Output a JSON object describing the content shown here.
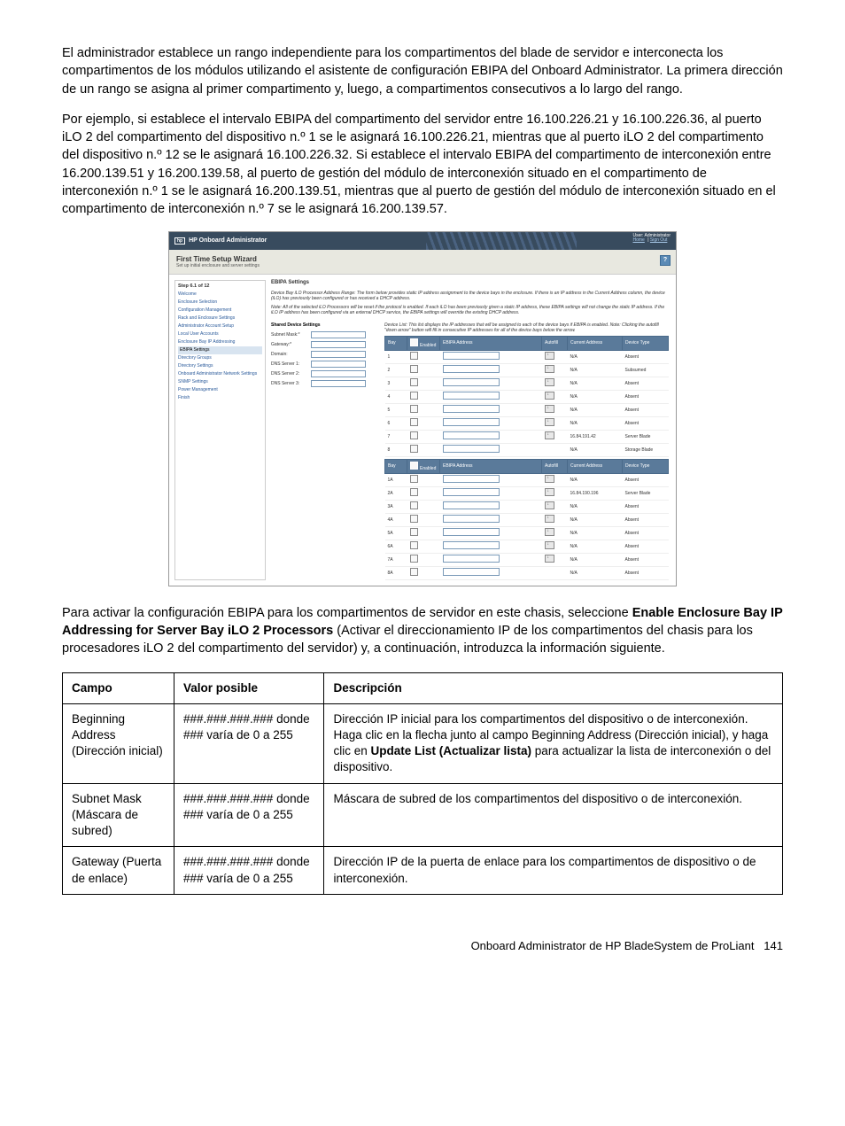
{
  "para1": "El administrador establece un rango independiente para los compartimentos del blade de servidor e interconecta los compartimentos de los módulos utilizando el asistente de configuración EBIPA del Onboard Administrator. La primera dirección de un rango se asigna al primer compartimento y, luego, a compartimentos consecutivos a lo largo del rango.",
  "para2": "Por ejemplo, si establece el intervalo EBIPA del compartimento del servidor entre 16.100.226.21 y 16.100.226.36, al puerto iLO 2 del compartimento del dispositivo n.º 1 se le asignará 16.100.226.21, mientras que al puerto iLO 2 del compartimento del dispositivo n.º 12 se le asignará 16.100.226.32. Si establece el intervalo EBIPA del compartimento de interconexión entre 16.200.139.51 y 16.200.139.58, al puerto de gestión del módulo de interconexión situado en el compartimento de interconexión n.º 1 se le asignará 16.200.139.51, mientras que al puerto de gestión del módulo de interconexión situado en el compartimento de interconexión n.º 7 se le asignará 16.200.139.57.",
  "para3_a": "Para activar la configuración EBIPA para los compartimentos de servidor en este chasis, seleccione ",
  "para3_b": "Enable Enclosure Bay IP Addressing for Server Bay iLO 2 Processors",
  "para3_c": " (Activar el direccionamiento IP de los compartimentos del chasis para los procesadores iLO 2 del compartimento del servidor) y, a continuación, introduzca la información siguiente.",
  "screenshot": {
    "app_title": "HP Onboard Administrator",
    "user_label": "User: Administrator",
    "home_link": "Home",
    "signout_link": "Sign Out",
    "wizard_title": "First Time Setup Wizard",
    "wizard_sub": "Set up initial enclosure and server settings",
    "help": "?",
    "step_head": "Step 6.1 of 12",
    "nav": [
      "Welcome",
      "Enclosure Selection",
      "Configuration Management",
      "Rack and Enclosure Settings",
      "Administrator Account Setup",
      "Local User Accounts",
      "Enclosure Bay IP Addressing",
      "EBIPA Settings",
      "Directory Groups",
      "Directory Settings",
      "Onboard Administrator Network Settings",
      "SNMP Settings",
      "Power Management",
      "Finish"
    ],
    "nav_active_idx": 7,
    "section_title": "EBIPA Settings",
    "desc1": "Device Bay iLO Processor Address Range: The form below provides static IP address assignment to the device bays in the enclosure. If there is an IP address in the Current Address column, the device (iLO) has previously been configured or has received a DHCP address.",
    "desc2": "Note: All of the selected iLO Processors will be reset if the protocol is enabled. If each iLO has been previously given a static IP address, these EBIPA settings will not change the static IP address. If the iLO IP address has been configured via an external DHCP service, the EBIPA settings will override the existing DHCP address.",
    "form_title": "Shared Device Settings",
    "form_labels": [
      "Subnet Mask:*",
      "Gateway:*",
      "Domain:",
      "DNS Server 1:",
      "DNS Server 2:",
      "DNS Server 3:"
    ],
    "table_note": "Device List: This list displays the IP addresses that will be assigned to each of the device bays if EBIPA is enabled. Note: Clicking the autofill \"down arrow\" button will fill in consecutive IP addresses for all of the device bays below the arrow.",
    "table_headers": [
      "Bay",
      "Enabled",
      "EBIPA Address",
      "Autofill",
      "Current Address",
      "Device Type"
    ],
    "rows1": [
      {
        "bay": "1",
        "cur": "N/A",
        "type": "Absent",
        "af": true
      },
      {
        "bay": "2",
        "cur": "N/A",
        "type": "Subsumed",
        "af": true
      },
      {
        "bay": "3",
        "cur": "N/A",
        "type": "Absent",
        "af": true
      },
      {
        "bay": "4",
        "cur": "N/A",
        "type": "Absent",
        "af": true
      },
      {
        "bay": "5",
        "cur": "N/A",
        "type": "Absent",
        "af": true
      },
      {
        "bay": "6",
        "cur": "N/A",
        "type": "Absent",
        "af": true
      },
      {
        "bay": "7",
        "cur": "16.84.191.42",
        "type": "Server Blade",
        "af": true
      },
      {
        "bay": "8",
        "cur": "N/A",
        "type": "Storage Blade",
        "af": false
      }
    ],
    "rows2": [
      {
        "bay": "1A",
        "cur": "N/A",
        "type": "Absent",
        "af": true
      },
      {
        "bay": "2A",
        "cur": "16.84.190.196",
        "type": "Server Blade",
        "af": true
      },
      {
        "bay": "3A",
        "cur": "N/A",
        "type": "Absent",
        "af": true
      },
      {
        "bay": "4A",
        "cur": "N/A",
        "type": "Absent",
        "af": true
      },
      {
        "bay": "5A",
        "cur": "N/A",
        "type": "Absent",
        "af": true
      },
      {
        "bay": "6A",
        "cur": "N/A",
        "type": "Absent",
        "af": true
      },
      {
        "bay": "7A",
        "cur": "N/A",
        "type": "Absent",
        "af": true
      },
      {
        "bay": "8A",
        "cur": "N/A",
        "type": "Absent",
        "af": false
      }
    ]
  },
  "fieldTable": {
    "headers": [
      "Campo",
      "Valor posible",
      "Descripción"
    ],
    "rows": [
      {
        "campo": "Beginning Address (Dirección inicial)",
        "valor": "###.###.###.### donde ### varía de 0 a 255",
        "desc_a": "Dirección IP inicial para los compartimentos del dispositivo o de interconexión. Haga clic en la flecha junto al campo Beginning Address (Dirección inicial), y haga clic en ",
        "desc_b": "Update List (Actualizar lista)",
        "desc_c": " para actualizar la lista de interconexión o del dispositivo."
      },
      {
        "campo": "Subnet Mask (Máscara de subred)",
        "valor": "###.###.###.### donde ### varía de 0 a 255",
        "desc": "Máscara de subred de los compartimentos del dispositivo o de interconexión."
      },
      {
        "campo": "Gateway (Puerta de enlace)",
        "valor": "###.###.###.### donde ### varía de 0 a 255",
        "desc": "Dirección IP de la puerta de enlace para los compartimentos de dispositivo o de interconexión."
      }
    ]
  },
  "footer": {
    "text": "Onboard Administrator de HP BladeSystem de ProLiant",
    "page": "141"
  }
}
